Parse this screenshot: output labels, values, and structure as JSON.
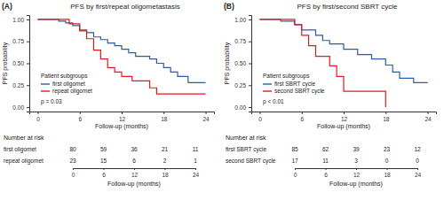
{
  "chart_data": [
    {
      "type": "line",
      "panel_label": "(A)",
      "title": "PFS by first/repeat oligometastasis",
      "x_label": "Follow-up (months)",
      "y_label": "PFS probability",
      "xlim": [
        -1.2,
        25.2
      ],
      "ylim": [
        -0.05,
        1.05
      ],
      "xticks": [
        0,
        6,
        12,
        18,
        24
      ],
      "yticks": [
        {
          "value": 0,
          "label": "0.00"
        },
        {
          "value": 0.25,
          "label": "0.25"
        },
        {
          "value": 0.5,
          "label": "0.50"
        },
        {
          "value": 0.75,
          "label": "0.75"
        },
        {
          "value": 1,
          "label": "1.00"
        }
      ],
      "line_style": "step",
      "legend": "lower left",
      "legend_title": "Patient subgroups",
      "annotation": "p = 0.03",
      "series": [
        {
          "name": "first oligomet",
          "color": "#2a5ca8",
          "x": [
            0,
            3,
            4,
            5,
            6,
            7,
            8,
            9,
            10,
            11,
            12,
            13,
            14,
            16,
            17,
            18,
            19,
            20,
            21.5,
            24
          ],
          "values": [
            1,
            0.98,
            0.96,
            0.93,
            0.88,
            0.85,
            0.8,
            0.77,
            0.73,
            0.7,
            0.66,
            0.62,
            0.58,
            0.55,
            0.5,
            0.45,
            0.4,
            0.35,
            0.28,
            0.28
          ]
        },
        {
          "name": "repeat oligomet",
          "color": "#e41a1c",
          "x": [
            0,
            4.5,
            6,
            7,
            8,
            9,
            10,
            11,
            12,
            13.5,
            16,
            17,
            24
          ],
          "values": [
            1,
            0.95,
            0.87,
            0.78,
            0.65,
            0.55,
            0.45,
            0.4,
            0.35,
            0.3,
            0.22,
            0.15,
            0.15
          ]
        }
      ],
      "risk_table": {
        "title": "Number at risk",
        "x_label": "Follow-up (months)",
        "xlim": [
          0,
          24
        ],
        "xticks": [
          0,
          6,
          12,
          18,
          24
        ],
        "rows": [
          {
            "name": "first oligomet",
            "values": [
              80,
              59,
              36,
              21,
              11
            ]
          },
          {
            "name": "repeat oligomet",
            "values": [
              23,
              15,
              6,
              2,
              1
            ]
          }
        ]
      }
    },
    {
      "type": "line",
      "panel_label": "(B)",
      "title": "PFS by first/second SBRT cycle",
      "x_label": "Follow-up (months)",
      "y_label": "PFS probability",
      "xlim": [
        -1.2,
        25.2
      ],
      "ylim": [
        -0.05,
        1.05
      ],
      "xticks": [
        0,
        6,
        12,
        18,
        24
      ],
      "yticks": [
        {
          "value": 0,
          "label": "0.00"
        },
        {
          "value": 0.25,
          "label": "0.25"
        },
        {
          "value": 0.5,
          "label": "0.50"
        },
        {
          "value": 0.75,
          "label": "0.75"
        },
        {
          "value": 1,
          "label": "1.00"
        }
      ],
      "line_style": "step",
      "legend": "lower left",
      "legend_title": "Patient subgroups",
      "annotation": "p < 0.01",
      "series": [
        {
          "name": "first SBRT cycle",
          "color": "#2a5ca8",
          "x": [
            0,
            3,
            5,
            6,
            8,
            9,
            10,
            12,
            14,
            16,
            18,
            19,
            20,
            22,
            24
          ],
          "values": [
            1,
            0.98,
            0.94,
            0.88,
            0.82,
            0.76,
            0.72,
            0.66,
            0.6,
            0.55,
            0.48,
            0.4,
            0.33,
            0.28,
            0.28
          ]
        },
        {
          "name": "second SBRT cycle",
          "color": "#e41a1c",
          "x": [
            0,
            5,
            6,
            7,
            8,
            10,
            11,
            12,
            18
          ],
          "values": [
            1,
            0.94,
            0.82,
            0.7,
            0.58,
            0.47,
            0.35,
            0.18,
            0
          ]
        }
      ],
      "risk_table": {
        "title": "Number at risk",
        "x_label": "Follow-up (months)",
        "xlim": [
          0,
          24
        ],
        "xticks": [
          0,
          6,
          12,
          18,
          24
        ],
        "rows": [
          {
            "name": "first SBRT cycle",
            "values": [
              85,
              62,
              39,
              23,
              12
            ]
          },
          {
            "name": "second SBRT cycle",
            "values": [
              17,
              11,
              3,
              0,
              0
            ]
          }
        ]
      }
    }
  ]
}
